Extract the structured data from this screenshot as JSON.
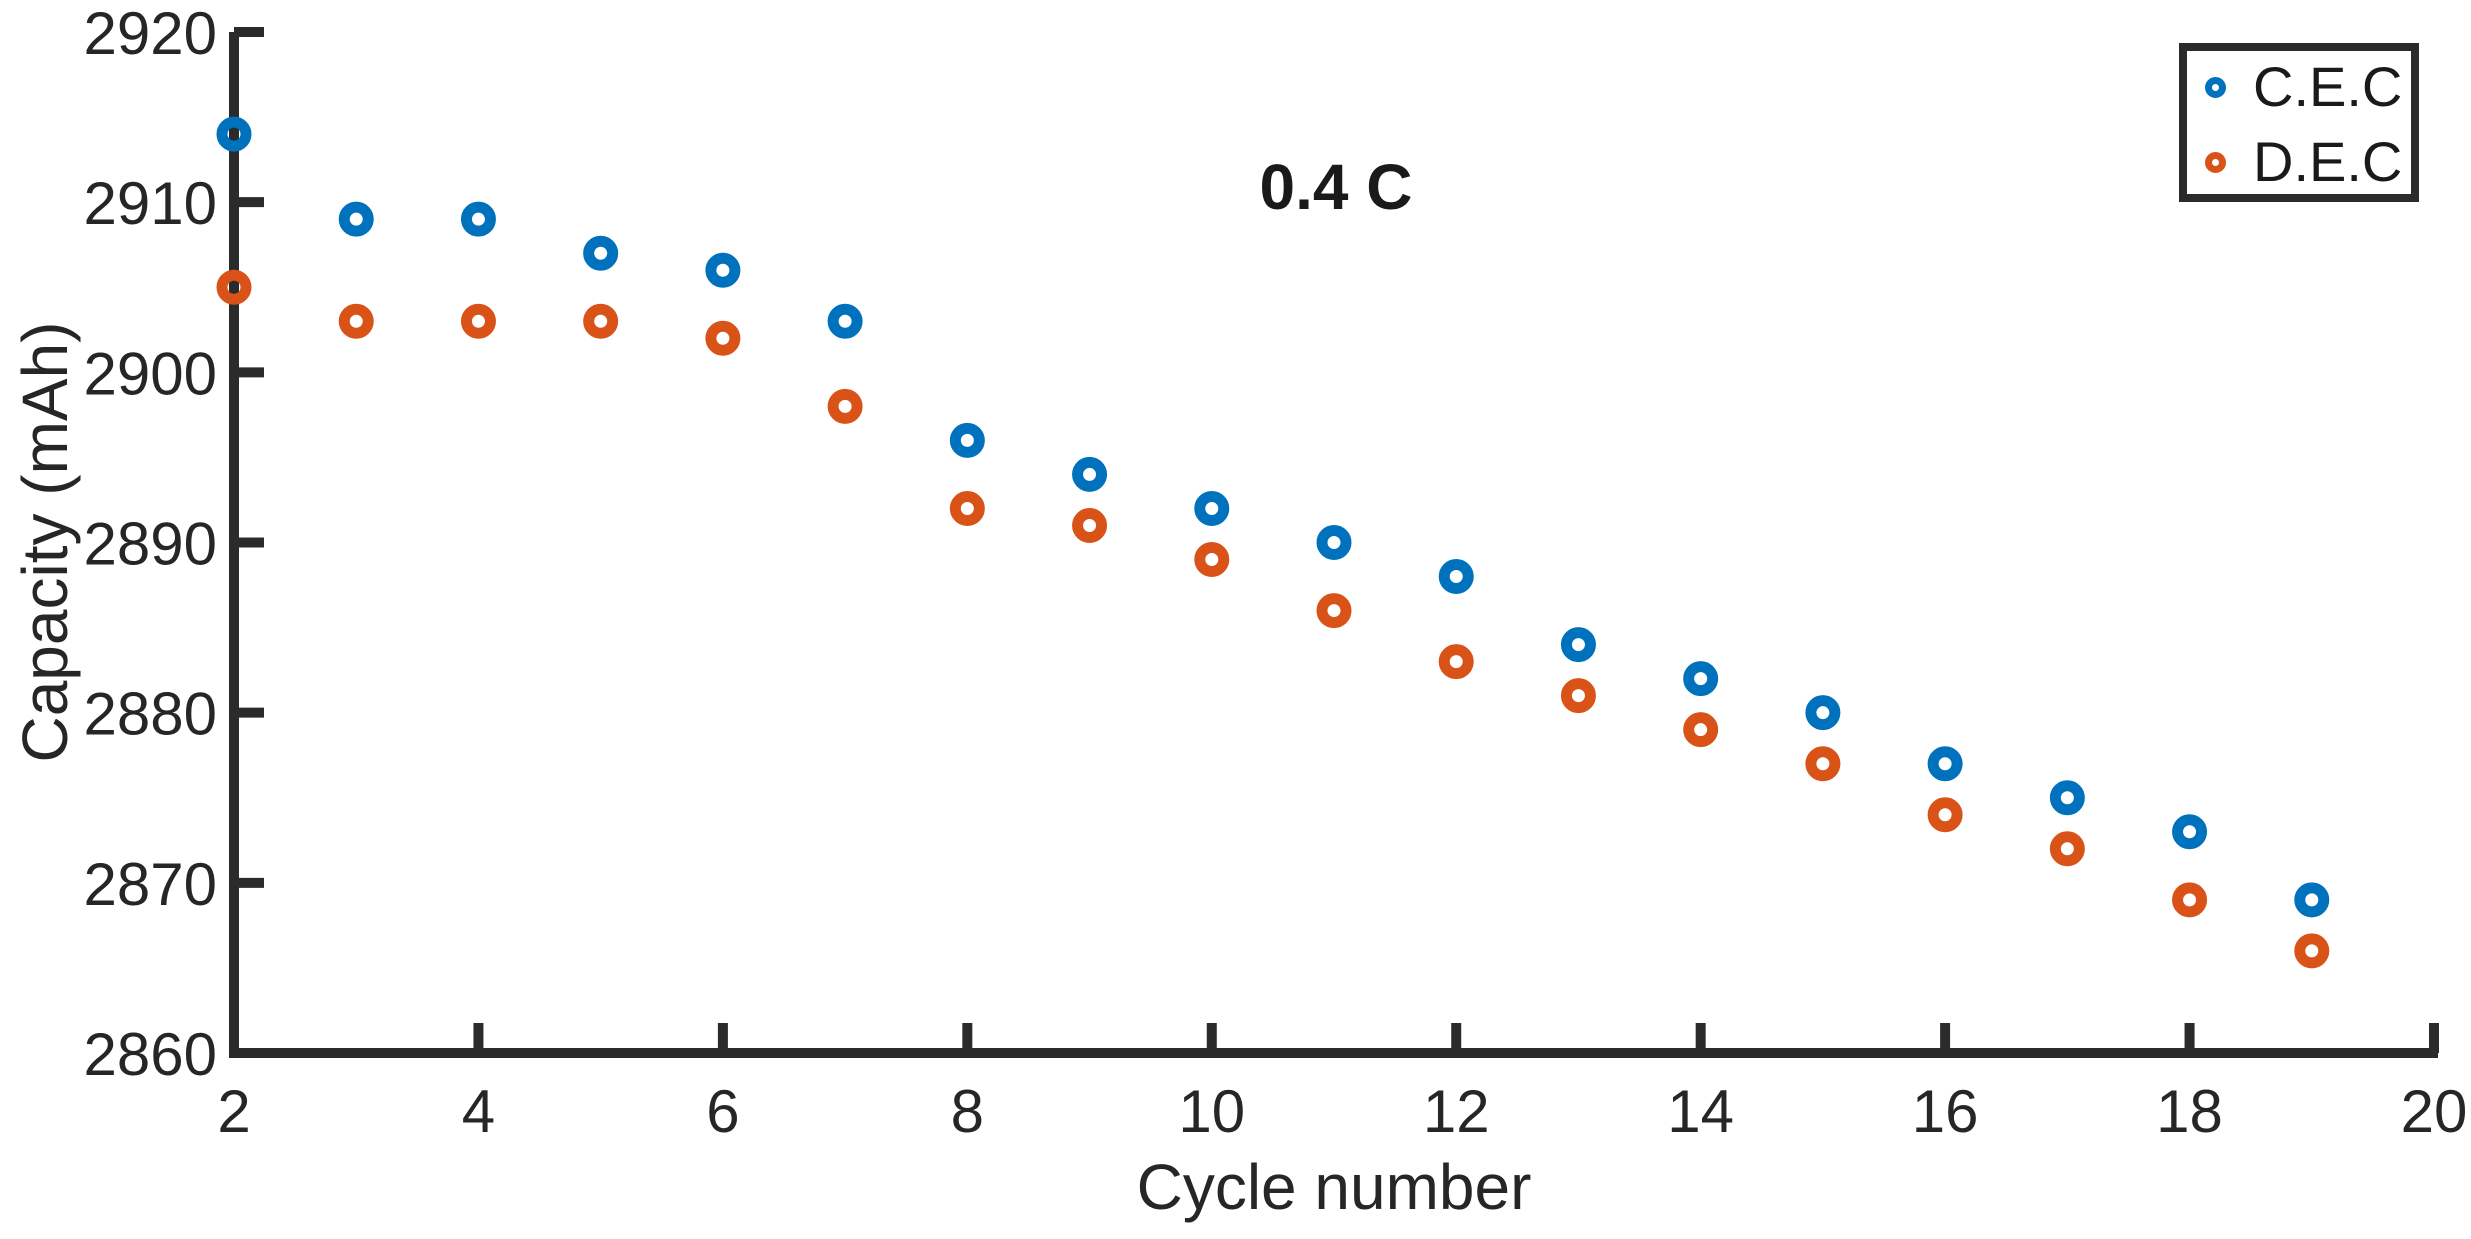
{
  "chart_data": {
    "type": "scatter",
    "annotation": "0.4 C",
    "xlabel": "Cycle number",
    "ylabel": "Capacity (mAh)",
    "xlim": [
      2,
      20
    ],
    "ylim": [
      2860,
      2920
    ],
    "xticks": [
      2,
      4,
      6,
      8,
      10,
      12,
      14,
      16,
      18,
      20
    ],
    "yticks": [
      2860,
      2870,
      2880,
      2890,
      2900,
      2910,
      2920
    ],
    "x": [
      2,
      3,
      4,
      5,
      6,
      7,
      8,
      9,
      10,
      11,
      12,
      13,
      14,
      15,
      16,
      17,
      18,
      19
    ],
    "series": [
      {
        "name": "C.E.C",
        "color": "#0072BD",
        "values": [
          2914,
          2909,
          2909,
          2907,
          2906,
          2903,
          2896,
          2894,
          2892,
          2890,
          2888,
          2884,
          2882,
          2880,
          2877,
          2875,
          2873,
          2869
        ]
      },
      {
        "name": "D.E.C",
        "color": "#D95319",
        "values": [
          2905,
          2903,
          2903,
          2903,
          2902,
          2898,
          2892,
          2891,
          2889,
          2886,
          2883,
          2881,
          2879,
          2877,
          2874,
          2872,
          2869,
          2866
        ]
      }
    ],
    "legend_position": "top-right",
    "grid": false,
    "axis_color": "#2b2b2b",
    "text_color": "#262626",
    "background": "#FFFFFF"
  }
}
